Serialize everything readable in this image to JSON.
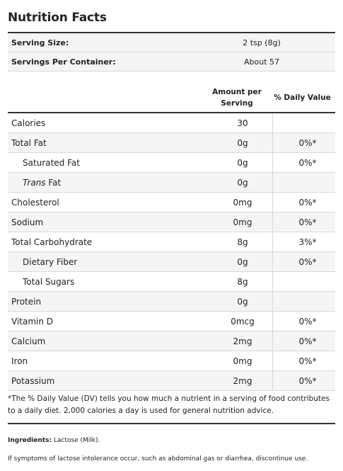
{
  "title": "Nutrition Facts",
  "serving": {
    "size_label": "Serving Size:",
    "size_value": "2 tsp (8g)",
    "per_container_label": "Servings Per Container:",
    "per_container_value": "About 57"
  },
  "header": {
    "amount_line1": "Amount per",
    "amount_line2": "Serving",
    "daily_value": "% Daily Value"
  },
  "nutrients": [
    {
      "name": "Calories",
      "amount": "30",
      "dv": ""
    },
    {
      "name": "Total Fat",
      "amount": "0g",
      "dv": "0%*"
    },
    {
      "name": "Saturated Fat",
      "amount": "0g",
      "dv": "0%*"
    },
    {
      "name_italic": "Trans",
      "name_rest": " Fat",
      "amount": "0g",
      "dv": ""
    },
    {
      "name": "Cholesterol",
      "amount": "0mg",
      "dv": "0%*"
    },
    {
      "name": "Sodium",
      "amount": "0mg",
      "dv": "0%*"
    },
    {
      "name": "Total Carbohydrate",
      "amount": "8g",
      "dv": "3%*"
    },
    {
      "name": "Dietary Fiber",
      "amount": "0g",
      "dv": "0%*"
    },
    {
      "name": "Total Sugars",
      "amount": "8g",
      "dv": ""
    },
    {
      "name": "Protein",
      "amount": "0g",
      "dv": ""
    },
    {
      "name": "Vitamin D",
      "amount": "0mcg",
      "dv": "0%*"
    },
    {
      "name": "Calcium",
      "amount": "2mg",
      "dv": "0%*"
    },
    {
      "name": "Iron",
      "amount": "0mg",
      "dv": "0%*"
    },
    {
      "name": "Potassium",
      "amount": "2mg",
      "dv": "0%*"
    }
  ],
  "footnote": "*The % Daily Value (DV) tells you how much a nutrient in a serving of food contributes to a daily diet. 2,000 calories a day is used for general nutrition advice.",
  "ingredients": {
    "label": "Ingredients:",
    "text": " Lactose (Milk)."
  },
  "warning": "If symptoms of lactose intolerance occur, such as abdominal gas or diarrhea, discontinue use."
}
